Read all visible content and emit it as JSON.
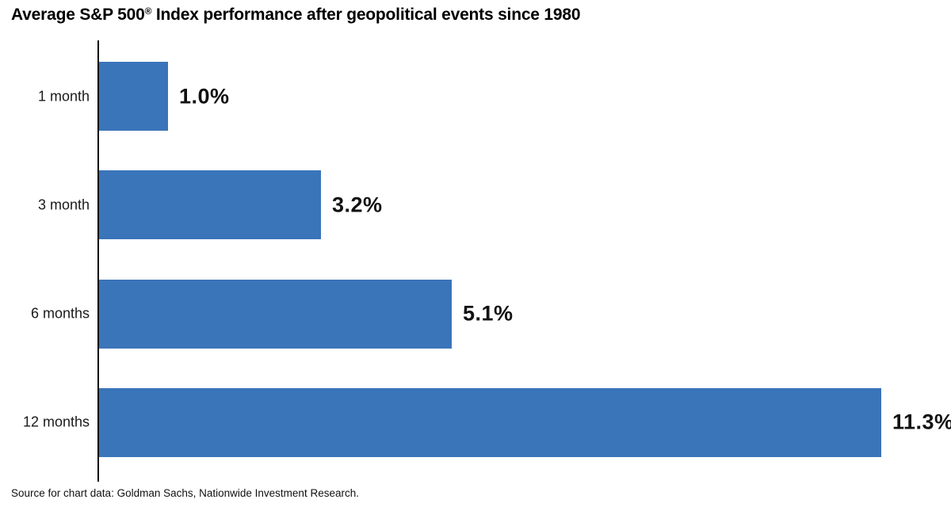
{
  "title": {
    "pre": "Average S&P 500",
    "reg_mark": "®",
    "post": " Index performance after geopolitical events since 1980"
  },
  "source": "Source for chart data: Goldman Sachs, Nationwide Investment Research.",
  "colors": {
    "bar": "#3a74b9",
    "axis": "#000000",
    "text": "#111111"
  },
  "chart_data": {
    "type": "bar",
    "orientation": "horizontal",
    "title": "Average S&P 500® Index performance after geopolitical events since 1980",
    "categories": [
      "1 month",
      "3 month",
      "6 months",
      "12 months"
    ],
    "values": [
      1.0,
      3.2,
      5.1,
      11.3
    ],
    "value_labels": [
      "1.0%",
      "3.2%",
      "5.1%",
      "11.3%"
    ],
    "xlabel": "",
    "ylabel": "",
    "xlim": [
      0,
      12
    ],
    "grid": false,
    "legend": "none",
    "bar_color": "#3a74b9",
    "source_note": "Source for chart data: Goldman Sachs, Nationwide Investment Research."
  }
}
